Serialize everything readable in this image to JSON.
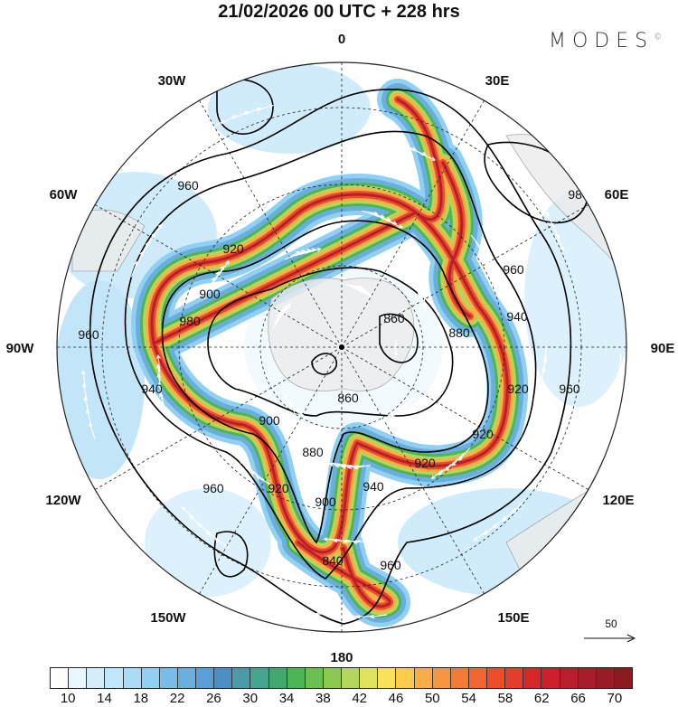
{
  "title": "21/02/2026  00 UTC  + 228 hrs",
  "logo": {
    "text": "MODES",
    "mark": "©"
  },
  "longitude_labels": {
    "n": "0",
    "ne": "30E",
    "e60": "60E",
    "e": "90E",
    "e120": "120E",
    "e150": "150E",
    "s": "180",
    "w150": "150W",
    "w120": "120W",
    "w": "90W",
    "w60": "60W",
    "w30": "30W"
  },
  "contour_labels": [
    "960",
    "920",
    "900",
    "980",
    "960",
    "940",
    "900",
    "880",
    "920",
    "960",
    "900",
    "840",
    "940",
    "920",
    "920",
    "920",
    "880",
    "940",
    "960",
    "860",
    "860",
    "980",
    "960",
    "960"
  ],
  "vector_reference": "50",
  "colorbar": {
    "ticks": [
      "10",
      "14",
      "18",
      "22",
      "26",
      "30",
      "34",
      "38",
      "42",
      "46",
      "50",
      "54",
      "58",
      "62",
      "66",
      "70"
    ],
    "colors": [
      "#ffffff",
      "#eaf6fd",
      "#d4edfa",
      "#bfe6f9",
      "#a9dcf7",
      "#91d0f2",
      "#7bbde8",
      "#6aaedd",
      "#5a9fd6",
      "#4a8fc6",
      "#4a9aa8",
      "#45a390",
      "#44a86e",
      "#4cb556",
      "#6cc04f",
      "#8cc94f",
      "#b4d65a",
      "#dfe35c",
      "#fbe25a",
      "#fccb4c",
      "#fbae46",
      "#f79540",
      "#f57a33",
      "#f26431",
      "#ec4e2c",
      "#e33d2c",
      "#d6282b",
      "#c9222d",
      "#b81f2c",
      "#a81d2a",
      "#981b26",
      "#8b1a1e"
    ]
  }
}
